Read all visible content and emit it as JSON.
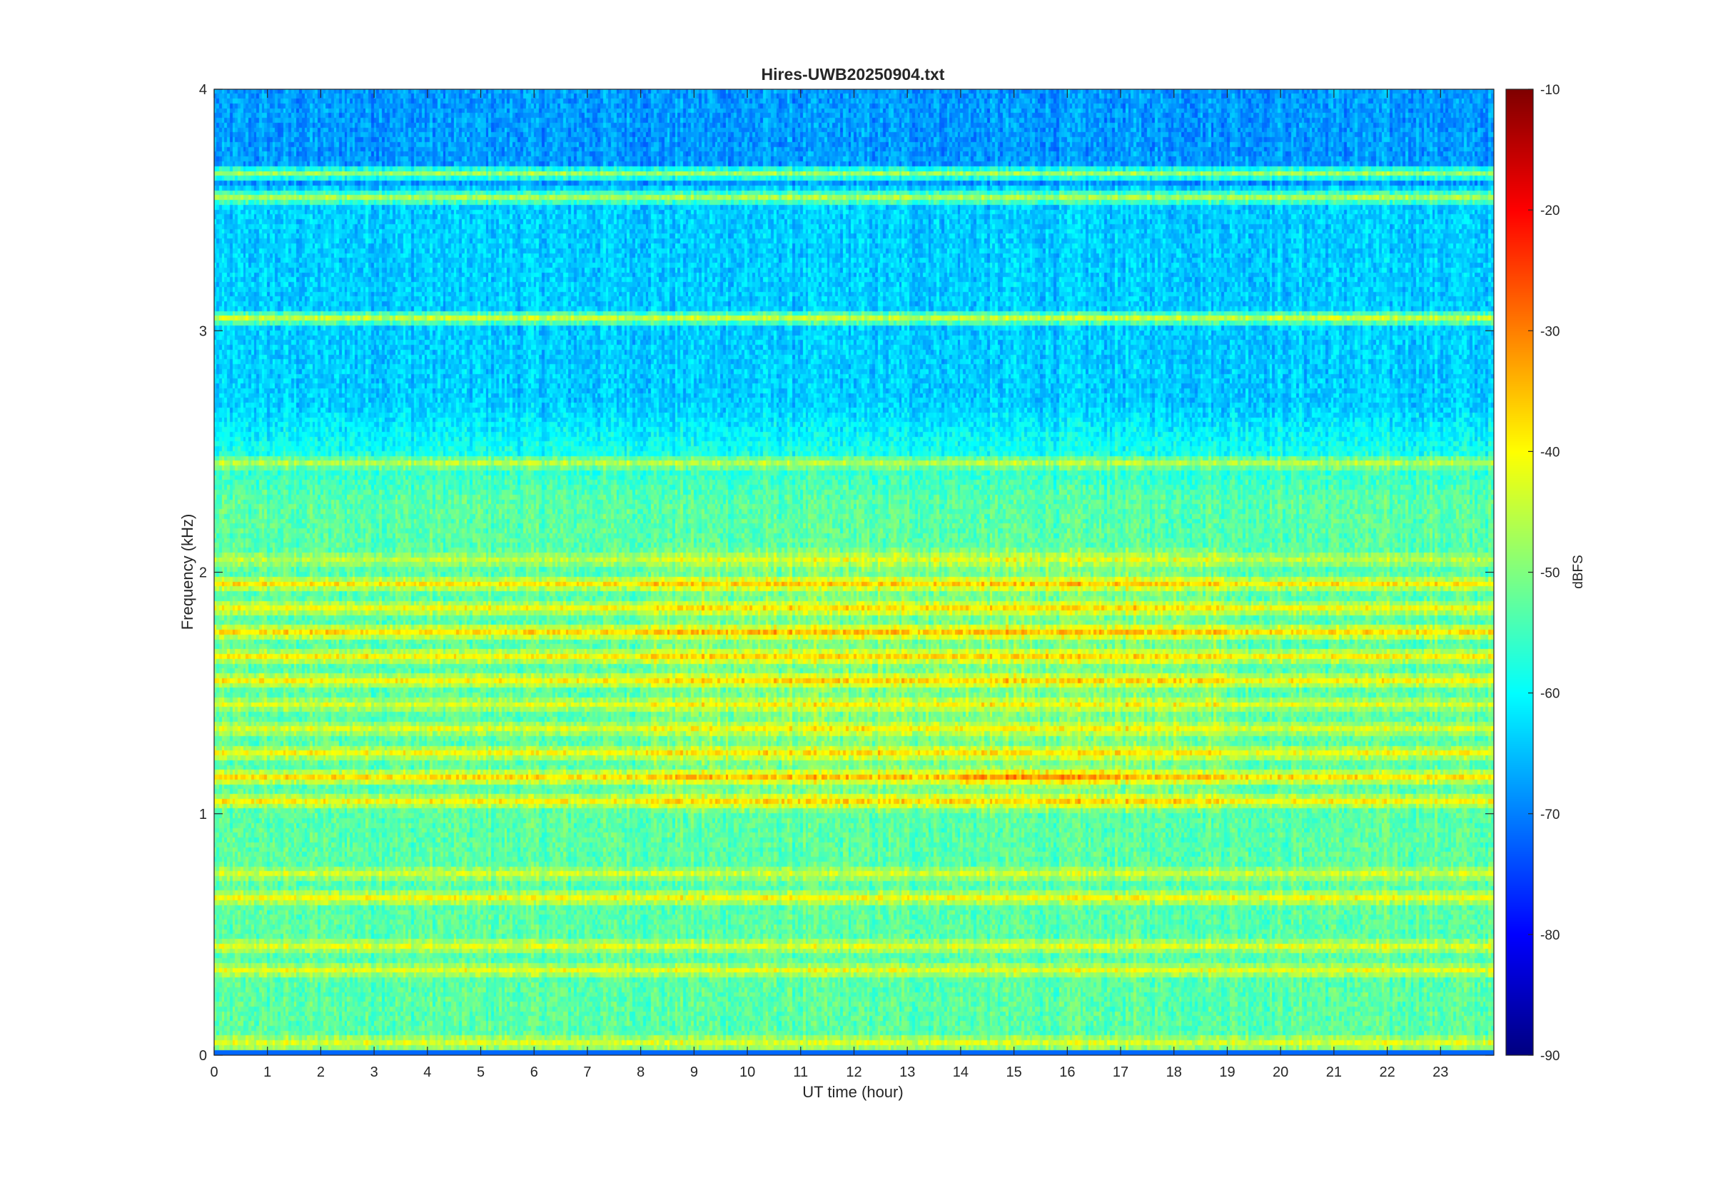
{
  "chart_data": {
    "type": "heatmap",
    "title": "Hires-UWB20250904.txt",
    "xlabel": "UT time (hour)",
    "ylabel": "Frequency (kHz)",
    "xlim": [
      0,
      24
    ],
    "ylim": [
      0,
      4
    ],
    "x_ticks": [
      "0",
      "1",
      "2",
      "3",
      "4",
      "5",
      "6",
      "7",
      "8",
      "9",
      "10",
      "11",
      "12",
      "13",
      "14",
      "15",
      "16",
      "17",
      "18",
      "19",
      "20",
      "21",
      "22",
      "23"
    ],
    "y_ticks": [
      "0",
      "1",
      "2",
      "3",
      "4"
    ],
    "colorbar": {
      "label": "dBFS",
      "range": [
        -90,
        -10
      ],
      "ticks": [
        "-10",
        "-20",
        "-30",
        "-40",
        "-50",
        "-60",
        "-70",
        "-80",
        "-90"
      ],
      "colormap": "jet"
    },
    "bands": [
      {
        "freq": 0.05,
        "level": -43
      },
      {
        "freq": 0.35,
        "level": -42
      },
      {
        "freq": 0.45,
        "level": -43
      },
      {
        "freq": 0.65,
        "level": -41
      },
      {
        "freq": 0.75,
        "level": -44
      },
      {
        "freq": 1.05,
        "level": -40
      },
      {
        "freq": 1.15,
        "level": -38
      },
      {
        "freq": 1.25,
        "level": -41
      },
      {
        "freq": 1.35,
        "level": -43
      },
      {
        "freq": 1.45,
        "level": -43
      },
      {
        "freq": 1.55,
        "level": -40
      },
      {
        "freq": 1.65,
        "level": -40
      },
      {
        "freq": 1.75,
        "level": -38
      },
      {
        "freq": 1.85,
        "level": -41
      },
      {
        "freq": 1.95,
        "level": -39
      },
      {
        "freq": 2.05,
        "level": -45
      },
      {
        "freq": 2.45,
        "level": -46
      },
      {
        "freq": 3.05,
        "level": -45
      },
      {
        "freq": 3.55,
        "level": -47
      },
      {
        "freq": 3.65,
        "level": -48
      }
    ],
    "background_level": {
      "0-2.5 kHz": -53,
      "2.5-4 kHz": -64
    }
  }
}
